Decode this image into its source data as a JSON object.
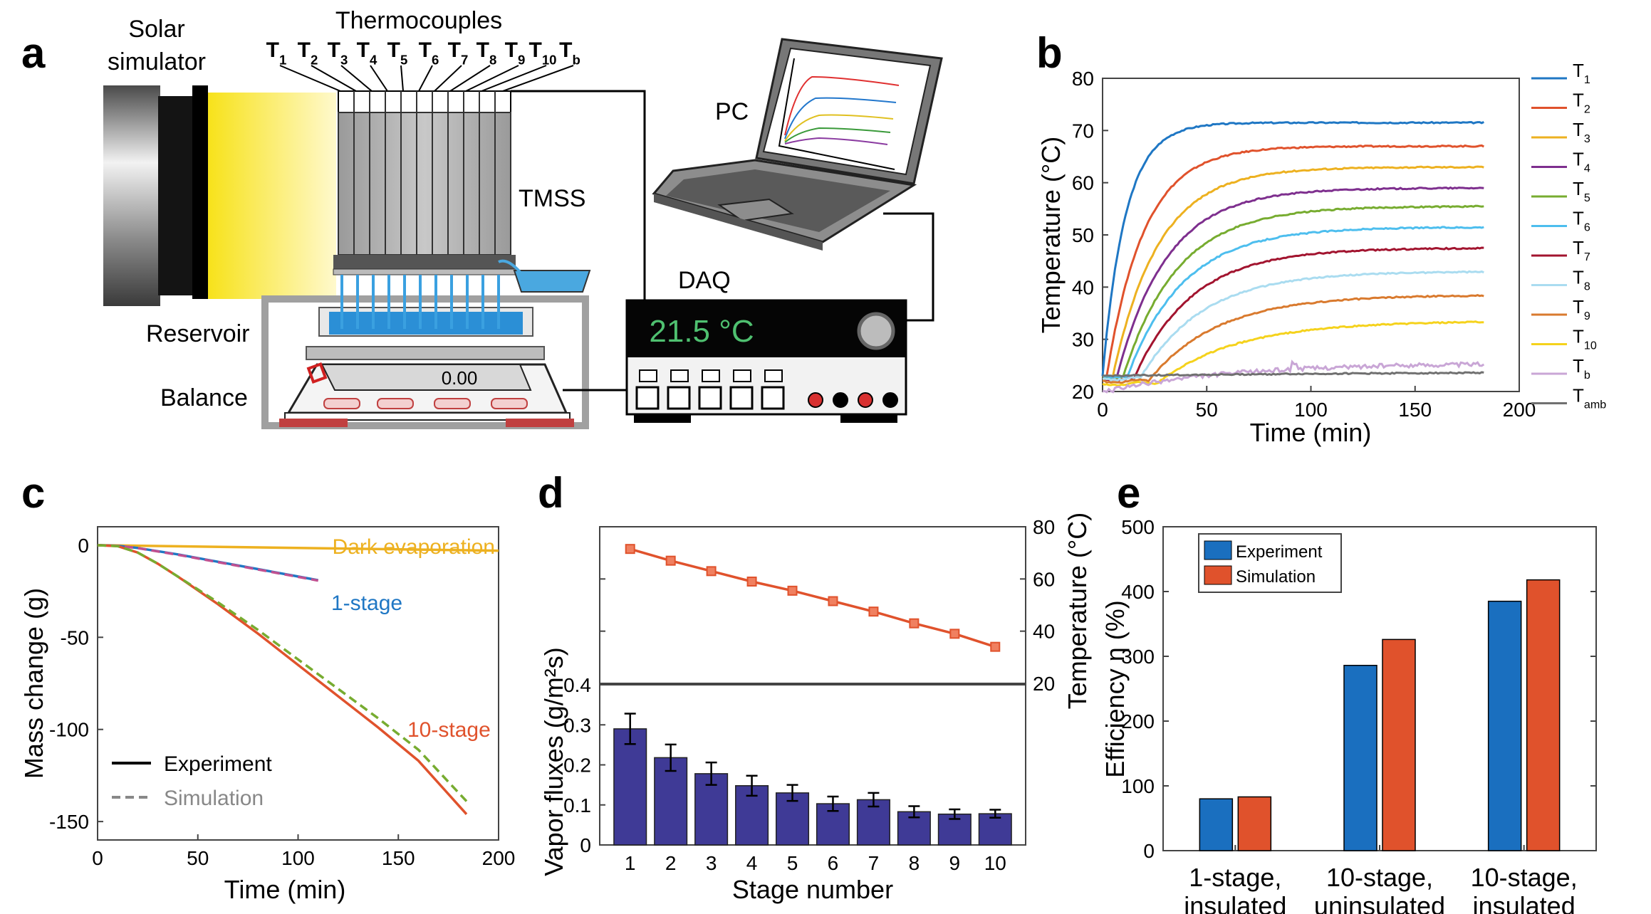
{
  "panels": {
    "a": {
      "label": "a",
      "solar_simulator_line1": "Solar",
      "solar_simulator_line2": "simulator",
      "thermocouples_title": "Thermocouples",
      "tc_labels": [
        {
          "main": "T",
          "sub": "1"
        },
        {
          "main": "T",
          "sub": "2"
        },
        {
          "main": "T",
          "sub": "3"
        },
        {
          "main": "T",
          "sub": "4"
        },
        {
          "main": "T",
          "sub": "5"
        },
        {
          "main": "T",
          "sub": "6"
        },
        {
          "main": "T",
          "sub": "7"
        },
        {
          "main": "T",
          "sub": "8"
        },
        {
          "main": "T",
          "sub": "9"
        },
        {
          "main": "T",
          "sub": "10"
        },
        {
          "main": "T",
          "sub": "b"
        }
      ],
      "pc_label": "PC",
      "tmss_label": "TMSS",
      "daq_label": "DAQ",
      "daq_reading": "21.5 °C",
      "reservoir_label": "Reservoir",
      "balance_label": "Balance",
      "balance_display": "0.00"
    },
    "b": {
      "label": "b"
    },
    "c": {
      "label": "c"
    },
    "d": {
      "label": "d"
    },
    "e": {
      "label": "e"
    }
  },
  "colors": {
    "T1": "#1f77c4",
    "T2": "#e0522c",
    "T3": "#edb120",
    "T4": "#7e2f8e",
    "T5": "#77ac30",
    "T6": "#4dbeee",
    "T7": "#a2142f",
    "T8": "#aadcf0",
    "T9": "#d97a2e",
    "T10": "#f5d21c",
    "Tb": "#c9a6d6",
    "Tamb": "#707070",
    "experiment_bar": "#1a6fbf",
    "simulation_bar": "#e0522c",
    "flux_bar": "#3f3a96",
    "temp_line": "#e0522c"
  },
  "chart_data": [
    {
      "id": "b",
      "type": "line",
      "xlabel": "Time (min)",
      "ylabel": "Temperature (°C)",
      "xlim": [
        0,
        200
      ],
      "ylim": [
        20,
        80
      ],
      "xticks": [
        "0",
        "50",
        "100",
        "150",
        "200"
      ],
      "yticks": [
        "20",
        "30",
        "40",
        "50",
        "60",
        "70",
        "80"
      ],
      "series": [
        {
          "name": "T",
          "sub": "1",
          "color_key": "T1",
          "final": 71.5,
          "tau": 11,
          "delay": 0,
          "start": 23
        },
        {
          "name": "T",
          "sub": "2",
          "color_key": "T2",
          "final": 67,
          "tau": 18,
          "delay": 2,
          "start": 23
        },
        {
          "name": "T",
          "sub": "3",
          "color_key": "T3",
          "final": 63,
          "tau": 22,
          "delay": 5,
          "start": 23
        },
        {
          "name": "T",
          "sub": "4",
          "color_key": "T4",
          "final": 59,
          "tau": 24,
          "delay": 7,
          "start": 23
        },
        {
          "name": "T",
          "sub": "5",
          "color_key": "T5",
          "final": 55.5,
          "tau": 26,
          "delay": 10,
          "start": 23
        },
        {
          "name": "T",
          "sub": "6",
          "color_key": "T6",
          "final": 51.5,
          "tau": 27,
          "delay": 12,
          "start": 23
        },
        {
          "name": "T",
          "sub": "7",
          "color_key": "T7",
          "final": 47.5,
          "tau": 28,
          "delay": 15,
          "start": 22.5
        },
        {
          "name": "T",
          "sub": "8",
          "color_key": "T8",
          "final": 43,
          "tau": 30,
          "delay": 18,
          "start": 22.5
        },
        {
          "name": "T",
          "sub": "9",
          "color_key": "T9",
          "final": 38.5,
          "tau": 33,
          "delay": 22,
          "start": 22
        },
        {
          "name": "T",
          "sub": "10",
          "color_key": "T10",
          "final": 33.5,
          "tau": 38,
          "delay": 26,
          "start": 21.5
        },
        {
          "name": "T",
          "sub": "b",
          "color_key": "Tb",
          "final": 25.5,
          "tau": 60,
          "delay": 5,
          "start": 20.3
        },
        {
          "name": "T",
          "sub": "amb",
          "color_key": "Tamb",
          "final": 24,
          "tau": 200,
          "delay": 0,
          "start": 23
        }
      ],
      "t_end": 183
    },
    {
      "id": "c",
      "type": "line",
      "xlabel": "Time (min)",
      "ylabel": "Mass change (g)",
      "xlim": [
        0,
        200
      ],
      "ylim": [
        -160,
        10
      ],
      "xticks": [
        "0",
        "50",
        "100",
        "150",
        "200"
      ],
      "yticks": [
        "0",
        "-50",
        "-100",
        "-150"
      ],
      "series": [
        {
          "name": "Dark evaporation",
          "color": "#edb120",
          "x": [
            0,
            200
          ],
          "y": [
            0,
            -3
          ],
          "dash": false
        },
        {
          "name": "1-stage",
          "color": "#1f77c4",
          "x": [
            0,
            10,
            20,
            40,
            60,
            80,
            100,
            110
          ],
          "y": [
            0,
            -0.3,
            -1.5,
            -5,
            -9,
            -13,
            -17,
            -19
          ],
          "dash": false
        },
        {
          "name": "1-stage simulation",
          "color": "#c05090",
          "x": [
            0,
            10,
            20,
            40,
            60,
            80,
            100,
            110
          ],
          "y": [
            0,
            -0.3,
            -1.6,
            -5.2,
            -9.2,
            -13.2,
            -17.2,
            -19.2
          ],
          "dash": true
        },
        {
          "name": "10-stage",
          "color": "#e0522c",
          "x": [
            0,
            10,
            20,
            30,
            40,
            60,
            80,
            100,
            120,
            140,
            160,
            184
          ],
          "y": [
            0,
            -0.5,
            -4,
            -10,
            -17,
            -32,
            -48,
            -65,
            -82,
            -99,
            -117,
            -146
          ],
          "dash": false
        },
        {
          "name": "10-stage simulation",
          "color": "#77ac30",
          "x": [
            0,
            10,
            20,
            30,
            40,
            60,
            80,
            100,
            120,
            140,
            160,
            184
          ],
          "y": [
            0,
            -0.5,
            -4,
            -10,
            -17,
            -31,
            -46,
            -62,
            -78,
            -94,
            -111,
            -139
          ],
          "dash": true
        }
      ],
      "annotations": [
        "Dark evaporation",
        "1-stage",
        "10-stage"
      ],
      "legend": [
        {
          "name": "Experiment",
          "style": "solid"
        },
        {
          "name": "Simulation",
          "style": "dashed"
        }
      ]
    },
    {
      "id": "d",
      "type": "bar",
      "xlabel": "Stage number",
      "ylabel_left": "Vapor fluxes (g/m²s)",
      "ylabel_right": "Temperature (°C)",
      "categories": [
        "1",
        "2",
        "3",
        "4",
        "5",
        "6",
        "7",
        "8",
        "9",
        "10"
      ],
      "flux_values": [
        0.29,
        0.218,
        0.178,
        0.148,
        0.13,
        0.103,
        0.113,
        0.083,
        0.077,
        0.078
      ],
      "flux_errors": [
        0.038,
        0.033,
        0.028,
        0.025,
        0.02,
        0.018,
        0.017,
        0.014,
        0.012,
        0.01
      ],
      "flux_ylim": [
        0,
        0.4
      ],
      "flux_yticks": [
        "0",
        "0.1",
        "0.2",
        "0.3",
        "0.4"
      ],
      "temperature_values": [
        71.5,
        67,
        63,
        59,
        55.5,
        51.5,
        47.5,
        43,
        39,
        34
      ],
      "temp_ylim": [
        20,
        80
      ],
      "temp_yticks": [
        "20",
        "40",
        "60",
        "80"
      ]
    },
    {
      "id": "e",
      "type": "bar",
      "ylabel": "Efficiency η (%)",
      "categories": [
        {
          "line1": "1-stage,",
          "line2": "insulated"
        },
        {
          "line1": "10-stage,",
          "line2": "uninsulated"
        },
        {
          "line1": "10-stage,",
          "line2": "insulated"
        }
      ],
      "series": [
        {
          "name": "Experiment",
          "values": [
            80,
            286,
            385
          ]
        },
        {
          "name": "Simulation",
          "values": [
            83,
            326,
            418
          ]
        }
      ],
      "ylim": [
        0,
        500
      ],
      "yticks": [
        "0",
        "100",
        "200",
        "300",
        "400",
        "500"
      ]
    }
  ]
}
